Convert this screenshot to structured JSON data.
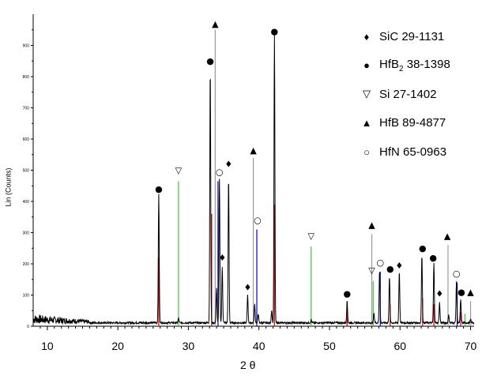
{
  "chart_data": {
    "type": "line",
    "xlabel": "2 θ",
    "ylabel": "Lin (Counts)",
    "xlim": [
      8,
      70.5
    ],
    "ylim": [
      0,
      1000
    ],
    "x_ticks": [
      10,
      20,
      30,
      40,
      50,
      60,
      70
    ],
    "y_ticks": [
      0,
      100,
      200,
      300,
      400,
      500,
      600,
      700,
      800,
      900
    ],
    "legend": [
      {
        "marker": "♦",
        "name": "SiC 29-1131",
        "color": "#000000"
      },
      {
        "marker": "●",
        "name": "HfB",
        "sub": "2",
        "suffix": " 38-1398",
        "color": "#cc0000"
      },
      {
        "marker": "▽",
        "name": "Si 27-1402",
        "color": "#33cc33"
      },
      {
        "marker": "▲",
        "name": "HfB 89-4877",
        "color": "#999999"
      },
      {
        "marker": "○",
        "name": "HfN 65-0963",
        "color": "#0000cc"
      }
    ],
    "reference_lines": [
      {
        "phase": "HfB2",
        "color": "#cc0000",
        "x": 25.8,
        "y": 220
      },
      {
        "phase": "HfB2",
        "color": "#cc0000",
        "x": 33.3,
        "y": 360
      },
      {
        "phase": "HfB2",
        "color": "#cc0000",
        "x": 42.2,
        "y": 390
      },
      {
        "phase": "HfB2",
        "color": "#cc0000",
        "x": 52.5,
        "y": 55
      },
      {
        "phase": "HfB2",
        "color": "#cc0000",
        "x": 58.6,
        "y": 70
      },
      {
        "phase": "HfB2",
        "color": "#cc0000",
        "x": 63.2,
        "y": 90
      },
      {
        "phase": "HfB2",
        "color": "#cc0000",
        "x": 64.8,
        "y": 70
      },
      {
        "phase": "HfB2",
        "color": "#cc0000",
        "x": 68.6,
        "y": 45
      },
      {
        "phase": "Si",
        "color": "#33cc33",
        "x": 28.6,
        "y": 465
      },
      {
        "phase": "Si",
        "color": "#33cc33",
        "x": 47.4,
        "y": 255
      },
      {
        "phase": "Si",
        "color": "#33cc33",
        "x": 56.2,
        "y": 145
      },
      {
        "phase": "Si",
        "color": "#33cc33",
        "x": 69.2,
        "y": 40
      },
      {
        "phase": "HfB",
        "color": "#999999",
        "x": 33.8,
        "y": 950
      },
      {
        "phase": "HfB",
        "color": "#999999",
        "x": 39.2,
        "y": 540
      },
      {
        "phase": "HfB",
        "color": "#999999",
        "x": 56.0,
        "y": 295
      },
      {
        "phase": "HfB",
        "color": "#999999",
        "x": 66.8,
        "y": 260
      },
      {
        "phase": "HfB",
        "color": "#999999",
        "x": 70.0,
        "y": 80
      },
      {
        "phase": "HfN",
        "color": "#0000cc",
        "x": 34.2,
        "y": 465
      },
      {
        "phase": "HfN",
        "color": "#0000cc",
        "x": 39.7,
        "y": 310
      },
      {
        "phase": "HfN",
        "color": "#0000cc",
        "x": 57.2,
        "y": 175
      },
      {
        "phase": "HfN",
        "color": "#0000cc",
        "x": 68.1,
        "y": 140
      }
    ],
    "peaks": [
      {
        "x": 25.8,
        "y": 410,
        "marker": "●"
      },
      {
        "x": 28.6,
        "y": 15,
        "marker": "▽"
      },
      {
        "x": 33.1,
        "y": 820,
        "marker": "●"
      },
      {
        "x": 34.0,
        "y": 110,
        "marker": "▲"
      },
      {
        "x": 34.4,
        "y": 460,
        "marker": "○"
      },
      {
        "x": 34.8,
        "y": 180,
        "marker": "♦"
      },
      {
        "x": 35.7,
        "y": 465,
        "marker": "♦"
      },
      {
        "x": 38.4,
        "y": 90,
        "marker": "♦"
      },
      {
        "x": 39.4,
        "y": 60,
        "marker": "▲"
      },
      {
        "x": 39.9,
        "y": 30,
        "marker": "○"
      },
      {
        "x": 41.8,
        "y": 40,
        "marker": ""
      },
      {
        "x": 42.2,
        "y": 920,
        "marker": "●"
      },
      {
        "x": 47.4,
        "y": 10,
        "marker": "▽"
      },
      {
        "x": 52.5,
        "y": 70,
        "marker": "●"
      },
      {
        "x": 56.3,
        "y": 30,
        "marker": "▽"
      },
      {
        "x": 57.1,
        "y": 170,
        "marker": "○"
      },
      {
        "x": 58.5,
        "y": 150,
        "marker": "●"
      },
      {
        "x": 59.9,
        "y": 165,
        "marker": "♦"
      },
      {
        "x": 63.1,
        "y": 220,
        "marker": "●"
      },
      {
        "x": 64.8,
        "y": 190,
        "marker": "●"
      },
      {
        "x": 65.6,
        "y": 65,
        "marker": "♦"
      },
      {
        "x": 66.9,
        "y": 25,
        "marker": "▲"
      },
      {
        "x": 68.0,
        "y": 130,
        "marker": "○"
      },
      {
        "x": 68.6,
        "y": 75,
        "marker": "●"
      },
      {
        "x": 70.0,
        "y": 10,
        "marker": "▲"
      }
    ],
    "background": {
      "noise_start": 8,
      "noise_end": 16,
      "noise_amplitude": 30,
      "base": 8
    },
    "grid": false
  }
}
